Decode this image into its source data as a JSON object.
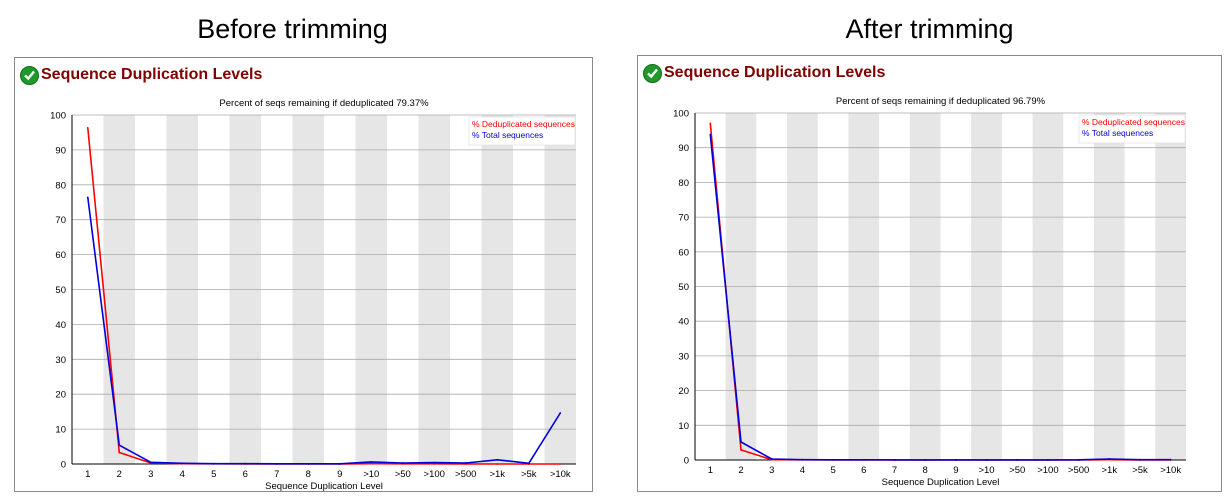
{
  "headings": {
    "left": "Before trimming",
    "right": "After trimming"
  },
  "panels": [
    {
      "title": "Sequence Duplication Levels",
      "status_icon": "green-check-icon"
    },
    {
      "title": "Sequence Duplication Levels",
      "status_icon": "green-check-icon"
    }
  ],
  "colors": {
    "dedup": "#ff0000",
    "total": "#0000dd",
    "band": "#e6e6e6",
    "title": "#800000",
    "check": "#1f9a2a"
  },
  "chart_data": [
    {
      "type": "line",
      "title": "Percent of seqs remaining if deduplicated 79.37%",
      "xlabel": "Sequence Duplication Level",
      "ylabel": "",
      "ylim": [
        0,
        100
      ],
      "yticks": [
        0,
        10,
        20,
        30,
        40,
        50,
        60,
        70,
        80,
        90,
        100
      ],
      "grid": true,
      "legend_position": "top-right",
      "categories": [
        "1",
        "2",
        "3",
        "4",
        "5",
        "6",
        "7",
        "8",
        "9",
        ">10",
        ">50",
        ">100",
        ">500",
        ">1k",
        ">5k",
        ">10k"
      ],
      "series": [
        {
          "name": "% Deduplicated sequences",
          "color": "#ff0000",
          "values": [
            96.3,
            3.3,
            0.3,
            0.1,
            0.05,
            0.03,
            0.02,
            0.02,
            0.01,
            0.1,
            0.05,
            0.05,
            0.02,
            0.01,
            0.0,
            0.0
          ]
        },
        {
          "name": "% Total sequences",
          "color": "#0000dd",
          "values": [
            76.4,
            5.4,
            0.5,
            0.2,
            0.1,
            0.1,
            0.05,
            0.05,
            0.05,
            0.6,
            0.3,
            0.4,
            0.3,
            1.2,
            0.2,
            14.6
          ]
        }
      ]
    },
    {
      "type": "line",
      "title": "Percent of seqs remaining if deduplicated 96.79%",
      "xlabel": "Sequence Duplication Level",
      "ylabel": "",
      "ylim": [
        0,
        100
      ],
      "yticks": [
        0,
        10,
        20,
        30,
        40,
        50,
        60,
        70,
        80,
        90,
        100
      ],
      "grid": true,
      "legend_position": "top-right",
      "categories": [
        "1",
        "2",
        "3",
        "4",
        "5",
        "6",
        "7",
        "8",
        "9",
        ">10",
        ">50",
        ">100",
        ">500",
        ">1k",
        ">5k",
        ">10k"
      ],
      "series": [
        {
          "name": "% Deduplicated sequences",
          "color": "#ff0000",
          "values": [
            97.0,
            2.9,
            0.1,
            0.05,
            0.02,
            0.02,
            0.01,
            0.01,
            0.01,
            0.01,
            0.01,
            0.01,
            0.01,
            0.1,
            0.0,
            0.0
          ]
        },
        {
          "name": "% Total sequences",
          "color": "#0000dd",
          "values": [
            93.8,
            5.2,
            0.3,
            0.1,
            0.05,
            0.05,
            0.03,
            0.03,
            0.02,
            0.03,
            0.03,
            0.03,
            0.05,
            0.3,
            0.1,
            0.1
          ]
        }
      ]
    }
  ]
}
